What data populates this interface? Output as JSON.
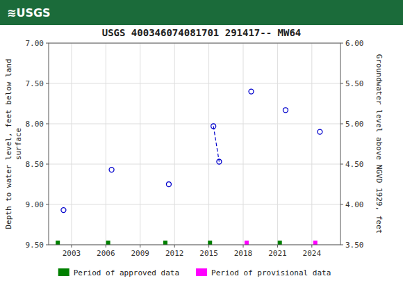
{
  "chart_data": {
    "type": "scatter",
    "title": "USGS 400346074081701 291417-- MW64",
    "annotations": [
      "≋USGS"
    ],
    "y_label": "Depth to water level, feet below land\nsurface",
    "y2_label": "Groundwater level above NGVD 1929, feet",
    "xlim": [
      2001.0,
      2026.5
    ],
    "xticks": [
      2003,
      2006,
      2009,
      2012,
      2015,
      2018,
      2021,
      2024
    ],
    "ylim": [
      9.5,
      7.0
    ],
    "yticks": [
      {
        "value": 7.0,
        "label": "7.00"
      },
      {
        "value": 7.5,
        "label": "7.50"
      },
      {
        "value": 8.0,
        "label": "8.00"
      },
      {
        "value": 8.5,
        "label": "8.50"
      },
      {
        "value": 9.0,
        "label": "9.00"
      },
      {
        "value": 9.5,
        "label": "9.50"
      }
    ],
    "y2lim": [
      3.5,
      6.0
    ],
    "y2ticks": [
      {
        "value": 6.0,
        "label": "6.00"
      },
      {
        "value": 5.5,
        "label": "5.50"
      },
      {
        "value": 5.0,
        "label": "5.00"
      },
      {
        "value": 4.5,
        "label": "4.50"
      },
      {
        "value": 4.0,
        "label": "4.00"
      },
      {
        "value": 3.5,
        "label": "3.50"
      }
    ],
    "grid": true,
    "legend": "bottom",
    "series": [
      {
        "type": "scatter",
        "marker": "circle",
        "color": "#0000cc",
        "x": [
          2002.3,
          2006.5,
          2011.5,
          2015.4,
          2015.9,
          2018.7,
          2021.7,
          2024.7
        ],
        "values": [
          9.07,
          8.57,
          8.75,
          8.03,
          8.47,
          7.6,
          7.83,
          8.1
        ]
      },
      {
        "type": "line",
        "line_style": "dashed",
        "color": "#0000cc",
        "x": [
          2015.4,
          2015.9
        ],
        "values": [
          8.03,
          8.47
        ]
      },
      {
        "name": "Period of approved data",
        "type": "period",
        "color": "#008000",
        "x": [
          2001.8,
          2006.2,
          2011.2,
          2015.1,
          2021.2
        ]
      },
      {
        "name": "Period of provisional data",
        "type": "period",
        "color": "#ff00ff",
        "x": [
          2018.3,
          2024.3
        ]
      }
    ]
  }
}
